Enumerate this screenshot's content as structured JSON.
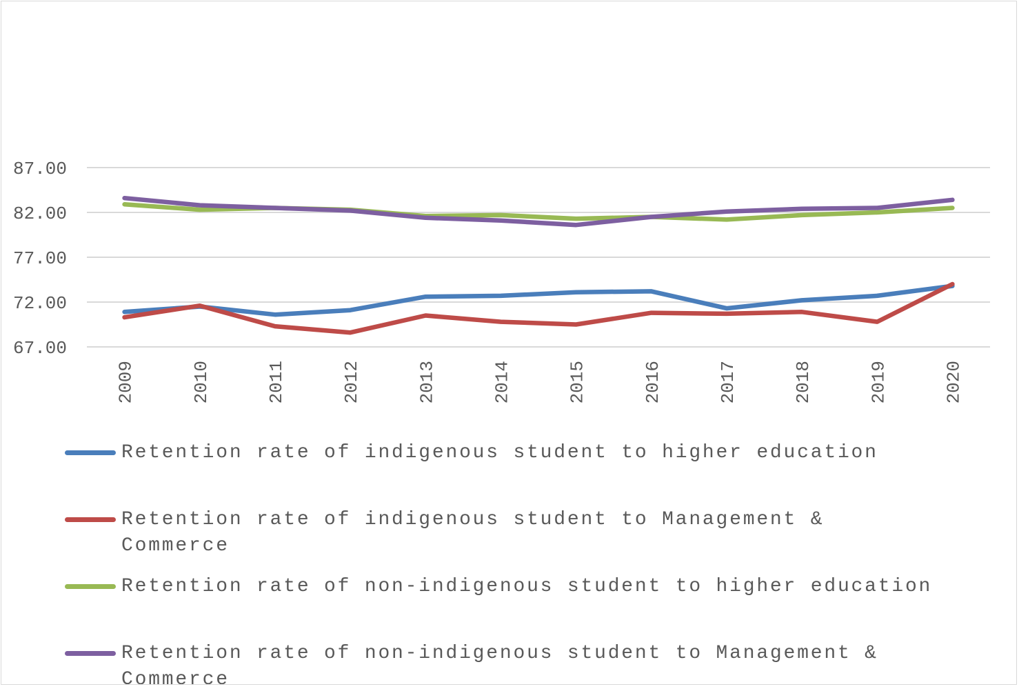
{
  "chart_data": {
    "type": "line",
    "title": "",
    "xlabel": "",
    "ylabel": "",
    "categories": [
      "2009",
      "2010",
      "2011",
      "2012",
      "2013",
      "2014",
      "2015",
      "2016",
      "2017",
      "2018",
      "2019",
      "2020"
    ],
    "yticks": [
      "67.00",
      "72.00",
      "77.00",
      "82.00",
      "87.00"
    ],
    "ylim": [
      67,
      87
    ],
    "grid": true,
    "legend_position": "bottom",
    "series": [
      {
        "name": "Retention rate of indigenous student to higher education",
        "color": "#4a7ebb",
        "values": [
          70.9,
          71.5,
          70.6,
          71.1,
          72.6,
          72.7,
          73.1,
          73.2,
          71.3,
          72.2,
          72.7,
          73.8
        ]
      },
      {
        "name": "Retention rate of indigenous student to Management & Commerce",
        "color": "#be4b48",
        "values": [
          70.3,
          71.6,
          69.3,
          68.6,
          70.5,
          69.8,
          69.5,
          70.8,
          70.7,
          70.9,
          69.8,
          74.0
        ]
      },
      {
        "name": "Retention rate of non-indigenous student to higher education",
        "color": "#98b954",
        "values": [
          82.9,
          82.3,
          82.5,
          82.3,
          81.6,
          81.7,
          81.3,
          81.5,
          81.2,
          81.7,
          82.0,
          82.5
        ]
      },
      {
        "name": "Retention rate of non-indigenous student to Management & Commerce",
        "color": "#7d5fa0",
        "values": [
          83.6,
          82.8,
          82.5,
          82.2,
          81.4,
          81.1,
          80.6,
          81.5,
          82.1,
          82.4,
          82.5,
          83.4
        ]
      }
    ]
  }
}
